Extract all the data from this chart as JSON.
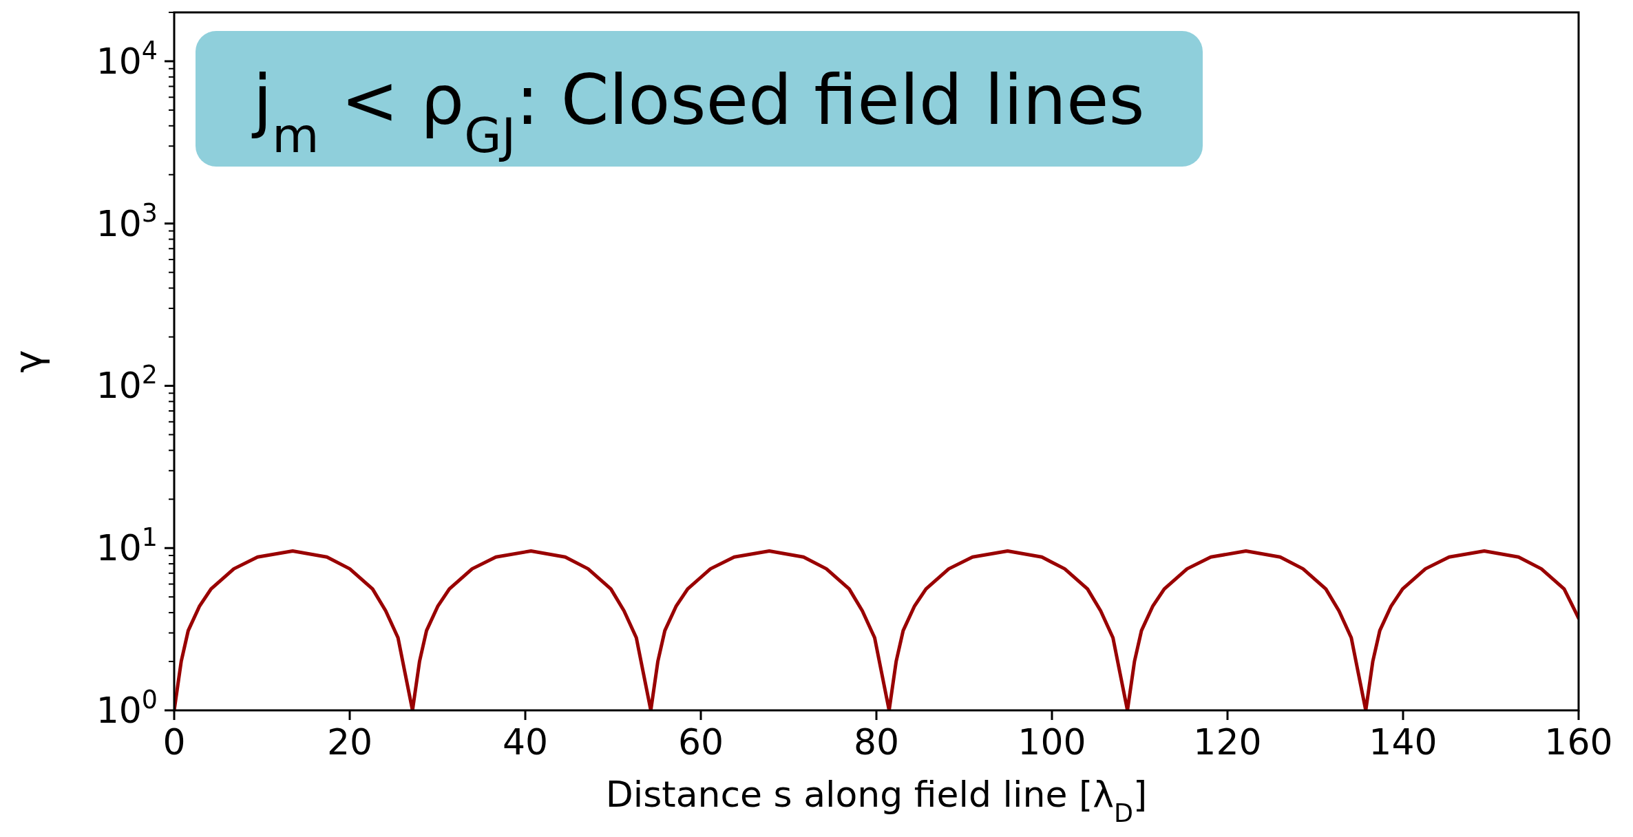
{
  "chart_data": {
    "type": "line",
    "xlabel": "Distance s along field line [λ$_{D}$]",
    "ylabel": "γ",
    "annotations": [
      "j$_{m}$ < ρ$_{GJ}$: Closed field lines"
    ],
    "log": "y",
    "grid": false,
    "marker": "none",
    "line_style": "solid",
    "xlim": [
      0,
      160
    ],
    "xticks": [
      0,
      20,
      40,
      60,
      80,
      100,
      120,
      140,
      160
    ],
    "ylim": [
      1,
      20000
    ],
    "yticks": [
      {
        "value": 1,
        "label": "10$^{0}$"
      },
      {
        "value": 2,
        "label": null
      },
      {
        "value": 3,
        "label": null
      },
      {
        "value": 4,
        "label": null
      },
      {
        "value": 5,
        "label": null
      },
      {
        "value": 6,
        "label": null
      },
      {
        "value": 7,
        "label": null
      },
      {
        "value": 8,
        "label": null
      },
      {
        "value": 9,
        "label": null
      },
      {
        "value": 10,
        "label": "10$^{1}$"
      },
      {
        "value": 20,
        "label": null
      },
      {
        "value": 30,
        "label": null
      },
      {
        "value": 40,
        "label": null
      },
      {
        "value": 50,
        "label": null
      },
      {
        "value": 60,
        "label": null
      },
      {
        "value": 70,
        "label": null
      },
      {
        "value": 80,
        "label": null
      },
      {
        "value": 90,
        "label": null
      },
      {
        "value": 100,
        "label": "10$^{2}$"
      },
      {
        "value": 200,
        "label": null
      },
      {
        "value": 300,
        "label": null
      },
      {
        "value": 400,
        "label": null
      },
      {
        "value": 500,
        "label": null
      },
      {
        "value": 600,
        "label": null
      },
      {
        "value": 700,
        "label": null
      },
      {
        "value": 800,
        "label": null
      },
      {
        "value": 900,
        "label": null
      },
      {
        "value": 1000,
        "label": "10$^{3}$"
      },
      {
        "value": 2000,
        "label": null
      },
      {
        "value": 3000,
        "label": null
      },
      {
        "value": 4000,
        "label": null
      },
      {
        "value": 5000,
        "label": null
      },
      {
        "value": 6000,
        "label": null
      },
      {
        "value": 7000,
        "label": null
      },
      {
        "value": 8000,
        "label": null
      },
      {
        "value": 9000,
        "label": null
      },
      {
        "value": 10000,
        "label": "10$^{4}$"
      },
      {
        "value": 20000,
        "label": null
      }
    ],
    "series": [
      {
        "color": "#990000",
        "x": [
          0,
          0.8,
          1.6,
          2.9,
          4.2,
          6.8,
          9.5,
          13.5,
          17.4,
          20,
          22.6,
          24.1,
          25.5,
          26.3,
          27.15,
          27.95,
          28.75,
          30.05,
          31.35,
          33.95,
          36.65,
          40.65,
          44.55,
          47.15,
          49.75,
          51.25,
          52.65,
          53.45,
          54.3,
          55.1,
          55.9,
          57.2,
          58.5,
          61.1,
          63.8,
          67.8,
          71.7,
          74.3,
          76.9,
          78.4,
          79.8,
          80.6,
          81.45,
          82.25,
          83.05,
          84.35,
          85.65,
          88.25,
          90.95,
          94.95,
          98.85,
          101.45,
          104.05,
          105.55,
          106.95,
          107.75,
          108.6,
          109.4,
          110.2,
          111.5,
          112.8,
          115.4,
          118.1,
          122.1,
          126,
          128.6,
          131.2,
          132.7,
          134.1,
          134.9,
          135.75,
          136.55,
          137.35,
          138.65,
          139.95,
          142.55,
          145.25,
          149.25,
          153.15,
          155.75,
          158.35,
          160
        ],
        "values": [
          1,
          2,
          3.1,
          4.4,
          5.6,
          7.45,
          8.8,
          9.6,
          8.8,
          7.45,
          5.6,
          4.1,
          2.8,
          1.7,
          1,
          2,
          3.1,
          4.4,
          5.6,
          7.45,
          8.8,
          9.6,
          8.8,
          7.45,
          5.6,
          4.1,
          2.8,
          1.7,
          1,
          2,
          3.1,
          4.4,
          5.6,
          7.45,
          8.8,
          9.6,
          8.8,
          7.45,
          5.6,
          4.1,
          2.8,
          1.7,
          1,
          2,
          3.1,
          4.4,
          5.6,
          7.45,
          8.8,
          9.6,
          8.8,
          7.45,
          5.6,
          4.1,
          2.8,
          1.7,
          1,
          2,
          3.1,
          4.4,
          5.6,
          7.45,
          8.8,
          9.6,
          8.8,
          7.45,
          5.6,
          4.1,
          2.8,
          1.7,
          1,
          2,
          3.1,
          4.4,
          5.6,
          7.45,
          8.8,
          9.6,
          8.8,
          7.45,
          5.6,
          3.7
        ]
      }
    ]
  }
}
